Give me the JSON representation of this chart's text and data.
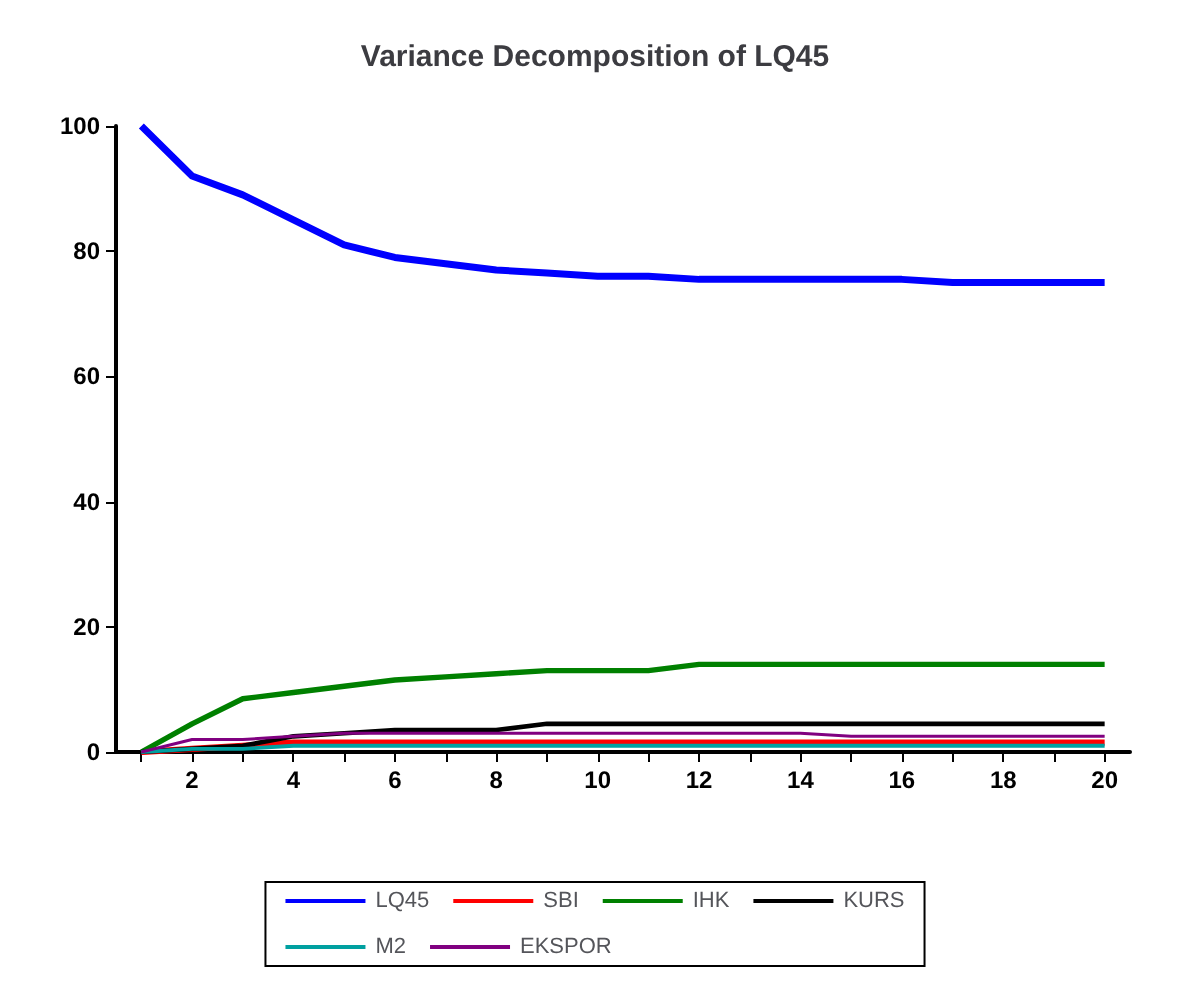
{
  "chart_data": {
    "type": "line",
    "title": "Variance Decomposition of LQ45",
    "x": [
      1,
      2,
      3,
      4,
      5,
      6,
      7,
      8,
      9,
      10,
      11,
      12,
      13,
      14,
      15,
      16,
      17,
      18,
      19,
      20
    ],
    "xlim": [
      0.5,
      20.5
    ],
    "xticks": [
      {
        "value": 1,
        "label": null
      },
      2,
      {
        "value": 3,
        "label": null
      },
      4,
      {
        "value": 5,
        "label": null
      },
      6,
      {
        "value": 7,
        "label": null
      },
      8,
      {
        "value": 9,
        "label": null
      },
      10,
      {
        "value": 11,
        "label": null
      },
      12,
      {
        "value": 13,
        "label": null
      },
      14,
      {
        "value": 15,
        "label": null
      },
      16,
      {
        "value": 17,
        "label": null
      },
      18,
      {
        "value": 19,
        "label": null
      },
      20
    ],
    "ylim": [
      0,
      100
    ],
    "yticks": [
      0,
      20,
      40,
      60,
      80,
      100
    ],
    "grid": false,
    "legend": "bottom",
    "series": [
      {
        "name": "LQ45",
        "color": "#0000ff",
        "values": [
          100,
          92,
          89,
          85,
          81,
          79,
          78,
          77,
          76.5,
          76,
          76,
          75.5,
          75.5,
          75.5,
          75.5,
          75.5,
          75,
          75,
          75,
          75
        ]
      },
      {
        "name": "SBI",
        "color": "#ff0000",
        "values": [
          0,
          0.5,
          1,
          1.5,
          1.5,
          1.5,
          1.5,
          1.5,
          1.5,
          1.5,
          1.5,
          1.5,
          1.5,
          1.5,
          1.5,
          1.5,
          1.5,
          1.5,
          1.5,
          1.5
        ]
      },
      {
        "name": "IHK",
        "color": "#008000",
        "values": [
          0,
          4.5,
          8.5,
          9.5,
          10.5,
          11.5,
          12,
          12.5,
          13,
          13,
          13,
          14,
          14,
          14,
          14,
          14,
          14,
          14,
          14,
          14
        ]
      },
      {
        "name": "KURS",
        "color": "#000000",
        "values": [
          0,
          0.5,
          1,
          2.5,
          3,
          3.5,
          3.5,
          3.5,
          4.5,
          4.5,
          4.5,
          4.5,
          4.5,
          4.5,
          4.5,
          4.5,
          4.5,
          4.5,
          4.5,
          4.5
        ]
      },
      {
        "name": "M2",
        "color": "#00a0a0",
        "values": [
          0,
          0.5,
          0.5,
          1,
          1,
          1,
          1,
          1,
          1,
          1,
          1,
          1,
          1,
          1,
          1,
          1,
          1,
          1,
          1,
          1
        ]
      },
      {
        "name": "EKSPOR",
        "color": "#800080",
        "values": [
          0,
          2,
          2,
          2.5,
          3,
          3,
          3,
          3,
          3,
          3,
          3,
          3,
          3,
          3,
          2.5,
          2.5,
          2.5,
          2.5,
          2.5,
          2.5
        ]
      }
    ]
  }
}
